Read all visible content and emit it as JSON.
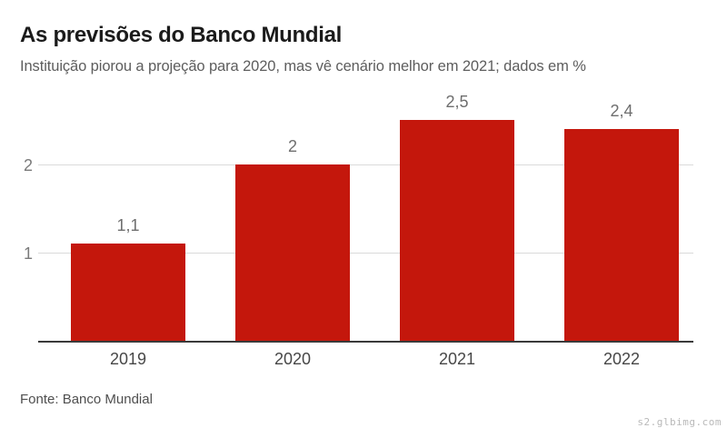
{
  "header": {
    "title": "As previsões do Banco Mundial",
    "subtitle": "Instituição piorou a projeção para 2020, mas vê cenário melhor em 2021; dados em %"
  },
  "chart_data": {
    "type": "bar",
    "title": "As previsões do Banco Mundial",
    "subtitle": "Instituição piorou a projeção para 2020, mas vê cenário melhor em 2021; dados em %",
    "categories": [
      "2019",
      "2020",
      "2021",
      "2022"
    ],
    "values": [
      1.1,
      2,
      2.5,
      2.4
    ],
    "value_labels": [
      "1,1",
      "2",
      "2,5",
      "2,4"
    ],
    "xlabel": "",
    "ylabel": "",
    "yticks": [
      1,
      2
    ],
    "ylim": [
      0,
      2.9
    ],
    "grid": "horizontal",
    "legend": "none",
    "bar_color": "#c4170c"
  },
  "colors": {
    "bar": "#c4170c",
    "title_text": "#1b1b1b",
    "subtitle_text": "#5d5d5d",
    "value_label_text": "#6e6e6e",
    "axis_line": "#3a3a3a",
    "gridline": "#dadada"
  },
  "footer": {
    "source": "Fonte: Banco Mundial",
    "watermark": "s2.glbimg.com"
  }
}
